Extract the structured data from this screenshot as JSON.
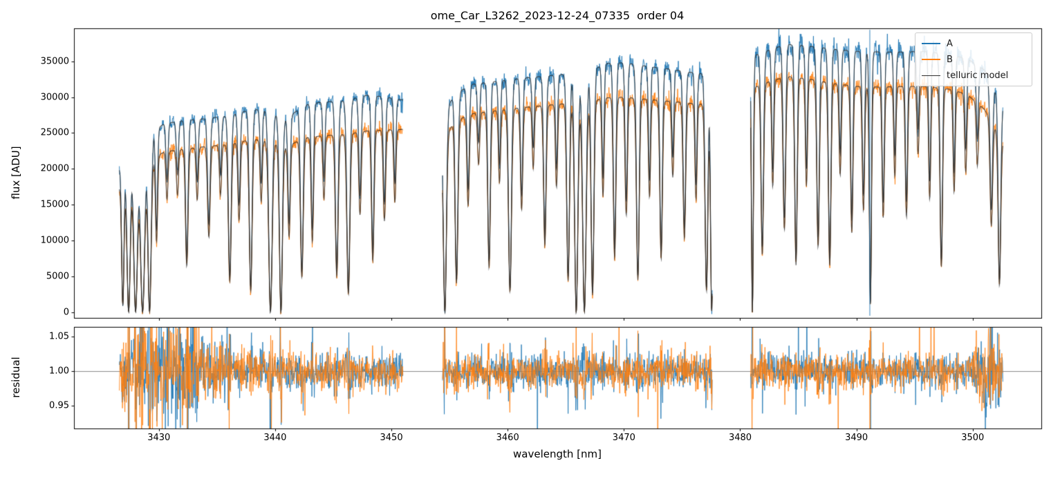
{
  "chart_data": {
    "type": "line",
    "title": "ome_Car_L3262_2023-12-24_07335  order 04",
    "xlabel": "wavelength [nm]",
    "xlim": [
      3422.7,
      3505.9
    ],
    "xticks": [
      {
        "v": 3430,
        "label": "3430"
      },
      {
        "v": 3440,
        "label": "3440"
      },
      {
        "v": 3450,
        "label": "3450"
      },
      {
        "v": 3460,
        "label": "3460"
      },
      {
        "v": 3470,
        "label": "3470"
      },
      {
        "v": 3480,
        "label": "3480"
      },
      {
        "v": 3490,
        "label": "3490"
      },
      {
        "v": 3500,
        "label": "3500"
      }
    ],
    "panels": [
      {
        "name": "flux",
        "ylabel": "flux [ADU]",
        "ylim": [
          -800,
          39600
        ],
        "yticks": [
          {
            "v": 0,
            "label": "0"
          },
          {
            "v": 5000,
            "label": "5000"
          },
          {
            "v": 10000,
            "label": "10000"
          },
          {
            "v": 15000,
            "label": "15000"
          },
          {
            "v": 20000,
            "label": "20000"
          },
          {
            "v": 25000,
            "label": "25000"
          },
          {
            "v": 30000,
            "label": "30000"
          },
          {
            "v": 35000,
            "label": "35000"
          }
        ]
      },
      {
        "name": "residual",
        "ylabel": "residual",
        "ylim": [
          0.917,
          1.064
        ],
        "yticks": [
          {
            "v": 0.95,
            "label": "0.95"
          },
          {
            "v": 1.0,
            "label": "1.00"
          },
          {
            "v": 1.05,
            "label": "1.05"
          }
        ],
        "hline": 1.0
      }
    ],
    "legend": [
      {
        "label": "A",
        "color": "#1f77b4",
        "lw": 2
      },
      {
        "label": "B",
        "color": "#ff7f0e",
        "lw": 2
      },
      {
        "label": "telluric model",
        "color": "#2f2f2f",
        "lw": 1.5
      }
    ],
    "series_colors": {
      "A": "#1f77b4",
      "B": "#ff7f0e",
      "telluric": "#2f2f2f"
    },
    "segments": [
      {
        "range": [
          3426.6,
          3451.0
        ],
        "noise_boost": 1.0,
        "continuum": [
          [
            3426.6,
            20000,
            17300
          ],
          [
            3427.6,
            22000,
            18800
          ],
          [
            3429.0,
            24800,
            21000
          ],
          [
            3430.5,
            26300,
            22400
          ],
          [
            3432.0,
            26700,
            22700
          ],
          [
            3434.0,
            27000,
            23100
          ],
          [
            3436.0,
            27400,
            23400
          ],
          [
            3438.0,
            28300,
            24100
          ],
          [
            3439.5,
            28100,
            23900
          ],
          [
            3441.0,
            27000,
            23100
          ],
          [
            3442.5,
            28900,
            24300
          ],
          [
            3444.0,
            29300,
            24600
          ],
          [
            3446.0,
            29500,
            24800
          ],
          [
            3448.0,
            30300,
            25300
          ],
          [
            3449.5,
            30000,
            25400
          ],
          [
            3451.0,
            29600,
            25500
          ]
        ]
      },
      {
        "range": [
          3454.4,
          3477.6
        ],
        "noise_boost": 1.0,
        "continuum": [
          [
            3454.4,
            27500,
            24000
          ],
          [
            3455.5,
            30500,
            26700
          ],
          [
            3457.0,
            31800,
            27700
          ],
          [
            3459.0,
            32200,
            28100
          ],
          [
            3461.0,
            32600,
            28500
          ],
          [
            3463.0,
            32900,
            28800
          ],
          [
            3465.0,
            33200,
            29100
          ],
          [
            3467.0,
            33600,
            29400
          ],
          [
            3468.5,
            34700,
            29900
          ],
          [
            3470.0,
            34800,
            30000
          ],
          [
            3472.0,
            34300,
            29700
          ],
          [
            3474.0,
            33900,
            29400
          ],
          [
            3476.0,
            33400,
            29100
          ],
          [
            3477.6,
            33100,
            28900
          ]
        ]
      },
      {
        "range": [
          3480.9,
          3502.6
        ],
        "noise_boost": 1.5,
        "continuum": [
          [
            3480.9,
            35600,
            31100
          ],
          [
            3482.0,
            36300,
            31900
          ],
          [
            3484.0,
            37400,
            32900
          ],
          [
            3486.0,
            37100,
            32500
          ],
          [
            3488.0,
            36700,
            31900
          ],
          [
            3490.0,
            36400,
            31500
          ],
          [
            3492.0,
            36300,
            31400
          ],
          [
            3494.0,
            36300,
            31500
          ],
          [
            3496.0,
            36400,
            31500
          ],
          [
            3498.0,
            35900,
            31100
          ],
          [
            3499.5,
            35400,
            30400
          ],
          [
            3501.0,
            33800,
            28300
          ],
          [
            3502.6,
            28800,
            23800
          ]
        ]
      }
    ],
    "absorption_lines": [
      [
        3426.9,
        0.95,
        0.1
      ],
      [
        3427.4,
        1.0,
        0.14
      ],
      [
        3428.0,
        1.0,
        0.16
      ],
      [
        3428.6,
        1.0,
        0.18
      ],
      [
        3429.2,
        1.0,
        0.14
      ],
      [
        3429.8,
        0.55,
        0.09
      ],
      [
        3430.7,
        0.3,
        0.09
      ],
      [
        3431.6,
        0.28,
        0.09
      ],
      [
        3432.4,
        0.72,
        0.11
      ],
      [
        3433.3,
        0.32,
        0.09
      ],
      [
        3434.3,
        0.55,
        0.11
      ],
      [
        3435.3,
        0.3,
        0.09
      ],
      [
        3436.1,
        0.82,
        0.12
      ],
      [
        3436.9,
        0.46,
        0.1
      ],
      [
        3437.9,
        0.88,
        0.12
      ],
      [
        3438.8,
        0.36,
        0.09
      ],
      [
        3439.6,
        1.0,
        0.15
      ],
      [
        3440.5,
        1.0,
        0.13
      ],
      [
        3441.2,
        0.55,
        0.1
      ],
      [
        3442.3,
        0.8,
        0.12
      ],
      [
        3443.2,
        0.6,
        0.1
      ],
      [
        3444.2,
        0.36,
        0.09
      ],
      [
        3445.3,
        0.8,
        0.12
      ],
      [
        3446.3,
        0.9,
        0.13
      ],
      [
        3447.3,
        0.46,
        0.1
      ],
      [
        3448.4,
        0.72,
        0.11
      ],
      [
        3449.4,
        0.5,
        0.1
      ],
      [
        3450.3,
        0.4,
        0.09
      ],
      [
        3454.6,
        1.0,
        0.13
      ],
      [
        3455.6,
        0.85,
        0.12
      ],
      [
        3456.6,
        0.46,
        0.1
      ],
      [
        3457.5,
        0.26,
        0.09
      ],
      [
        3458.4,
        0.78,
        0.11
      ],
      [
        3459.3,
        0.36,
        0.09
      ],
      [
        3460.2,
        0.9,
        0.13
      ],
      [
        3461.2,
        0.5,
        0.1
      ],
      [
        3462.2,
        0.3,
        0.09
      ],
      [
        3463.2,
        0.68,
        0.11
      ],
      [
        3464.2,
        0.4,
        0.09
      ],
      [
        3465.2,
        0.85,
        0.12
      ],
      [
        3465.9,
        1.0,
        0.14
      ],
      [
        3466.6,
        1.0,
        0.15
      ],
      [
        3467.3,
        0.92,
        0.12
      ],
      [
        3468.2,
        0.46,
        0.09
      ],
      [
        3469.2,
        0.75,
        0.11
      ],
      [
        3470.2,
        0.55,
        0.1
      ],
      [
        3471.2,
        0.85,
        0.12
      ],
      [
        3472.2,
        0.46,
        0.09
      ],
      [
        3473.2,
        0.75,
        0.11
      ],
      [
        3474.2,
        0.36,
        0.09
      ],
      [
        3475.2,
        0.65,
        0.11
      ],
      [
        3476.2,
        0.46,
        0.09
      ],
      [
        3477.1,
        0.9,
        0.12
      ],
      [
        3477.55,
        1.0,
        0.1
      ],
      [
        3481.05,
        1.0,
        0.08
      ],
      [
        3481.9,
        0.75,
        0.11
      ],
      [
        3482.8,
        0.46,
        0.09
      ],
      [
        3483.8,
        0.65,
        0.11
      ],
      [
        3484.8,
        0.8,
        0.11
      ],
      [
        3485.7,
        0.46,
        0.09
      ],
      [
        3486.7,
        0.72,
        0.11
      ],
      [
        3487.7,
        0.8,
        0.11
      ],
      [
        3488.6,
        0.4,
        0.09
      ],
      [
        3489.6,
        0.65,
        0.1
      ],
      [
        3490.6,
        0.55,
        0.1
      ],
      [
        3491.2,
        0.97,
        0.09
      ],
      [
        3492.3,
        0.58,
        0.1
      ],
      [
        3493.3,
        0.4,
        0.09
      ],
      [
        3494.3,
        0.58,
        0.1
      ],
      [
        3495.3,
        0.3,
        0.09
      ],
      [
        3496.3,
        0.5,
        0.09
      ],
      [
        3497.3,
        0.8,
        0.11
      ],
      [
        3498.4,
        0.46,
        0.09
      ],
      [
        3499.4,
        0.36,
        0.09
      ],
      [
        3500.4,
        0.3,
        0.09
      ],
      [
        3501.6,
        0.55,
        0.11
      ],
      [
        3502.3,
        0.85,
        0.11
      ]
    ],
    "noise": {
      "flux_frac_sigma": 0.012,
      "flux_add_sigma": 220,
      "residual_sigma": 0.012,
      "residual_left_boost": 2.3,
      "residual_right_boost": 1.8,
      "spike_prob": 0.003
    },
    "outlier_spikes": [
      {
        "x": 3491.15,
        "series": "A",
        "y0": -500,
        "y1": 39400
      }
    ]
  }
}
